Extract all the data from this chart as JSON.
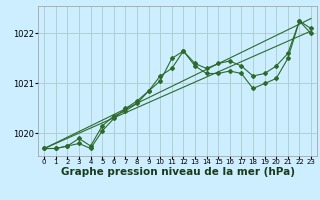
{
  "background_color": "#cceeff",
  "grid_color": "#aacccc",
  "line_color": "#2d6a2d",
  "marker_color": "#2d6a2d",
  "xlabel": "Graphe pression niveau de la mer (hPa)",
  "xlabel_fontsize": 7.5,
  "ylabel_ticks": [
    1020,
    1021,
    1022
  ],
  "xlim": [
    -0.5,
    23.5
  ],
  "ylim": [
    1019.55,
    1022.55
  ],
  "x_ticks": [
    0,
    1,
    2,
    3,
    4,
    5,
    6,
    7,
    8,
    9,
    10,
    11,
    12,
    13,
    14,
    15,
    16,
    17,
    18,
    19,
    20,
    21,
    22,
    23
  ],
  "trend": {
    "x": [
      0,
      23
    ],
    "y": [
      1019.7,
      1022.3
    ]
  },
  "trend2": {
    "x": [
      0,
      23
    ],
    "y": [
      1019.7,
      1022.05
    ]
  },
  "series2": {
    "x": [
      0,
      1,
      2,
      3,
      4,
      5,
      6,
      7,
      8,
      9,
      10,
      11,
      12,
      13,
      14,
      15,
      16,
      17,
      18,
      19,
      20,
      21,
      22,
      23
    ],
    "y": [
      1019.7,
      1019.7,
      1019.75,
      1019.8,
      1019.7,
      1020.05,
      1020.3,
      1020.5,
      1020.65,
      1020.85,
      1021.05,
      1021.5,
      1021.65,
      1021.35,
      1021.2,
      1021.2,
      1021.25,
      1021.2,
      1020.9,
      1021.0,
      1021.1,
      1021.5,
      1022.25,
      1022.0
    ]
  },
  "series3": {
    "x": [
      0,
      1,
      2,
      3,
      4,
      5,
      6,
      7,
      8,
      9,
      10,
      11,
      12,
      13,
      14,
      15,
      16,
      17,
      18,
      19,
      20,
      21,
      22,
      23
    ],
    "y": [
      1019.7,
      1019.7,
      1019.75,
      1019.9,
      1019.75,
      1020.15,
      1020.35,
      1020.45,
      1020.6,
      1020.85,
      1021.15,
      1021.3,
      1021.65,
      1021.4,
      1021.3,
      1021.4,
      1021.45,
      1021.35,
      1021.15,
      1021.2,
      1021.35,
      1021.6,
      1022.25,
      1022.1
    ]
  }
}
